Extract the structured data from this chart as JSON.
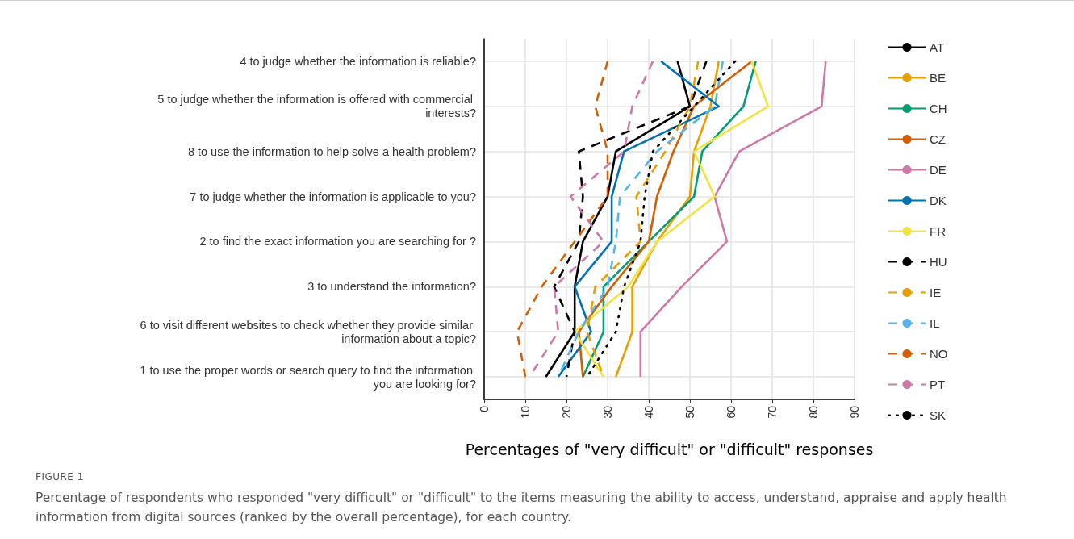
{
  "chart_data": {
    "type": "line",
    "orientation": "horizontal",
    "xlabel": "Percentages of \"very difficult\" or \"difficult\" responses",
    "annotations": [
      "FIGURE 1",
      "Percentage of respondents who responded \"very difficult\" or \"difficult\" to the items measuring the ability to access, understand, appraise and apply health information from digital sources (ranked by the overall percentage), for each country."
    ],
    "categories": [
      "4 to judge whether the information is reliable?",
      "5 to judge whether the information is offered with commercial interests?",
      "8 to use the information to help solve a health problem?",
      "7 to judge whether the information is applicable to you?",
      "2 to find the exact information you are searching for ?",
      "3 to understand the information?",
      "6 to visit different websites to check whether they provide similar information about a topic?",
      "1 to use the proper words or search query to find the information you are looking for?"
    ],
    "xlim": [
      0,
      90
    ],
    "xticks": [
      0,
      10,
      20,
      30,
      40,
      50,
      60,
      70,
      80,
      90
    ],
    "grid": true,
    "legend": "right",
    "marker": "none",
    "series": [
      {
        "name": "AT",
        "color": "#000000",
        "line_style": "solid",
        "values": [
          47,
          50,
          32,
          30,
          24,
          22,
          22,
          15
        ]
      },
      {
        "name": "BE",
        "color": "#e69f00",
        "line_style": "solid",
        "values": [
          57,
          55,
          51,
          50,
          42,
          36,
          36,
          32
        ]
      },
      {
        "name": "CH",
        "color": "#009e73",
        "line_style": "solid",
        "values": [
          66,
          63,
          53,
          51,
          40,
          29,
          29,
          24
        ]
      },
      {
        "name": "CZ",
        "color": "#d55e00",
        "line_style": "solid",
        "values": [
          65,
          51,
          46,
          42,
          40,
          31,
          23,
          24
        ]
      },
      {
        "name": "DE",
        "color": "#cc79a7",
        "line_style": "solid",
        "values": [
          83,
          82,
          62,
          56,
          59,
          48,
          38,
          38
        ]
      },
      {
        "name": "DK",
        "color": "#0072b2",
        "line_style": "solid",
        "values": [
          43,
          57,
          34,
          31,
          31,
          22,
          26,
          18
        ]
      },
      {
        "name": "FR",
        "color": "#f0e442",
        "line_style": "solid",
        "values": [
          65,
          69,
          51,
          56,
          42,
          35,
          22,
          29
        ]
      },
      {
        "name": "HU",
        "color": "#000000",
        "line_style": "dashed",
        "values": [
          54,
          50,
          23,
          24,
          23,
          17,
          22,
          20
        ]
      },
      {
        "name": "IE",
        "color": "#e69f00",
        "line_style": "dashed",
        "values": [
          52,
          50,
          44,
          37,
          38,
          27,
          25,
          29
        ]
      },
      {
        "name": "IL",
        "color": "#56b4e9",
        "line_style": "dashed",
        "values": [
          58,
          56,
          42,
          33,
          32,
          30,
          23,
          18
        ]
      },
      {
        "name": "NO",
        "color": "#d55e00",
        "line_style": "dashed",
        "values": [
          30,
          27,
          30,
          30,
          22,
          14,
          8,
          10
        ]
      },
      {
        "name": "PT",
        "color": "#cc79a7",
        "line_style": "dashed",
        "values": [
          41,
          36,
          34,
          21,
          29,
          17,
          18,
          11
        ]
      },
      {
        "name": "SK",
        "color": "#000000",
        "line_style": "dotted",
        "values": [
          61,
          51,
          41,
          39,
          38,
          34,
          32,
          25
        ]
      }
    ]
  }
}
